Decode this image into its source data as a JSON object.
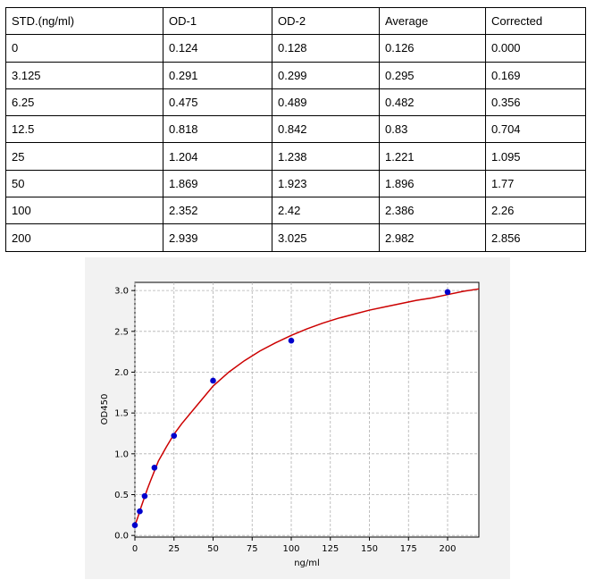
{
  "table": {
    "headers": [
      "STD.(ng/ml)",
      "OD-1",
      "OD-2",
      "Average",
      "Corrected"
    ],
    "rows": [
      [
        "0",
        "0.124",
        "0.128",
        "0.126",
        "0.000"
      ],
      [
        "3.125",
        "0.291",
        "0.299",
        "0.295",
        "0.169"
      ],
      [
        "6.25",
        "0.475",
        "0.489",
        "0.482",
        "0.356"
      ],
      [
        "12.5",
        "0.818",
        "0.842",
        "0.83",
        "0.704"
      ],
      [
        "25",
        "1.204",
        "1.238",
        "1.221",
        "1.095"
      ],
      [
        "50",
        "1.869",
        "1.923",
        "1.896",
        "1.77"
      ],
      [
        "100",
        "2.352",
        "2.42",
        "2.386",
        "2.26"
      ],
      [
        "200",
        "2.939",
        "3.025",
        "2.982",
        "2.856"
      ]
    ]
  },
  "chart_data": {
    "type": "scatter",
    "xlabel": "ng/ml",
    "ylabel": "OD450",
    "xlim": [
      0,
      220
    ],
    "ylim": [
      -0.02,
      3.1
    ],
    "xticks": [
      0,
      25,
      50,
      75,
      100,
      125,
      150,
      175,
      200
    ],
    "yticks": [
      0.0,
      0.5,
      1.0,
      1.5,
      2.0,
      2.5,
      3.0
    ],
    "ytick_labels": [
      "0.0",
      "0.5",
      "1.0",
      "1.5",
      "2.0",
      "2.5",
      "3.0"
    ],
    "grid": true,
    "points": {
      "x": [
        0,
        3.125,
        6.25,
        12.5,
        25,
        50,
        100,
        200
      ],
      "y": [
        0.126,
        0.295,
        0.482,
        0.83,
        1.221,
        1.896,
        2.386,
        2.982
      ],
      "color": "#0000cc"
    },
    "fit_curve": {
      "x": [
        0,
        2,
        4,
        6,
        8,
        10,
        15,
        20,
        25,
        30,
        40,
        50,
        60,
        70,
        80,
        90,
        100,
        110,
        120,
        130,
        140,
        150,
        160,
        170,
        180,
        190,
        200,
        210,
        220
      ],
      "y": [
        0.12,
        0.23,
        0.35,
        0.46,
        0.57,
        0.67,
        0.91,
        1.08,
        1.24,
        1.37,
        1.6,
        1.83,
        2.0,
        2.14,
        2.26,
        2.36,
        2.45,
        2.53,
        2.6,
        2.66,
        2.71,
        2.76,
        2.8,
        2.84,
        2.88,
        2.91,
        2.95,
        2.99,
        3.02
      ],
      "color": "#cc0000"
    }
  }
}
